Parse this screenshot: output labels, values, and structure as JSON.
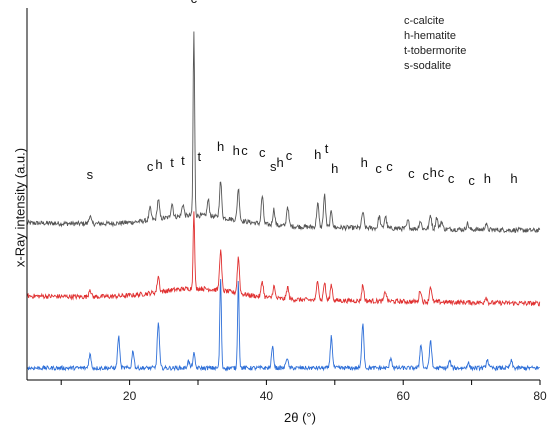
{
  "chart_data": {
    "type": "line",
    "xlabel": "2θ (°)",
    "ylabel": "x-Ray intensity (a.u.)",
    "xlim": [
      5,
      80
    ],
    "x_ticks": [
      "20",
      "40",
      "60",
      "80"
    ],
    "grid": false,
    "legend": {
      "placement": "top-right",
      "entries": [
        "c-calcite",
        "h-hematite",
        "t-tobermorite",
        "s-sodalite"
      ]
    },
    "colors": {
      "top": "#555555",
      "middle": "#e03030",
      "bottom": "#2e6fd8",
      "axis": "#000000"
    },
    "series": [
      {
        "color_key": "top",
        "baseline": 0.8,
        "peaks": [
          [
            14.2,
            0.2
          ],
          [
            23.0,
            0.3
          ],
          [
            24.2,
            0.5
          ],
          [
            26.2,
            0.35
          ],
          [
            27.8,
            0.3
          ],
          [
            29.4,
            4.6
          ],
          [
            31.5,
            0.4
          ],
          [
            33.3,
            0.9
          ],
          [
            35.9,
            0.8
          ],
          [
            39.4,
            0.7
          ],
          [
            41.1,
            0.4
          ],
          [
            43.1,
            0.5
          ],
          [
            47.5,
            0.6
          ],
          [
            48.5,
            0.8
          ],
          [
            49.5,
            0.4
          ],
          [
            54.1,
            0.4
          ],
          [
            56.5,
            0.3
          ],
          [
            57.4,
            0.3
          ],
          [
            60.7,
            0.2
          ],
          [
            62.5,
            0.2
          ],
          [
            64.0,
            0.35
          ],
          [
            64.9,
            0.3
          ],
          [
            65.6,
            0.2
          ],
          [
            69.4,
            0.15
          ],
          [
            72.1,
            0.15
          ]
        ]
      },
      {
        "color_key": "middle",
        "baseline": 0.8,
        "peaks": [
          [
            14.2,
            0.2
          ],
          [
            24.2,
            0.4
          ],
          [
            29.4,
            1.9
          ],
          [
            33.3,
            1.0
          ],
          [
            35.9,
            0.9
          ],
          [
            39.4,
            0.4
          ],
          [
            41.1,
            0.3
          ],
          [
            43.1,
            0.3
          ],
          [
            47.5,
            0.5
          ],
          [
            48.5,
            0.45
          ],
          [
            49.5,
            0.4
          ],
          [
            54.1,
            0.4
          ],
          [
            57.4,
            0.25
          ],
          [
            62.5,
            0.3
          ],
          [
            64.0,
            0.4
          ],
          [
            72.1,
            0.15
          ]
        ]
      },
      {
        "color_key": "bottom",
        "baseline": 0.0,
        "peaks": [
          [
            14.2,
            0.4
          ],
          [
            18.4,
            0.9
          ],
          [
            20.5,
            0.5
          ],
          [
            24.2,
            1.3
          ],
          [
            28.6,
            0.2
          ],
          [
            29.4,
            0.4
          ],
          [
            33.3,
            2.6
          ],
          [
            35.9,
            2.5
          ],
          [
            40.9,
            0.6
          ],
          [
            43.0,
            0.3
          ],
          [
            49.5,
            0.9
          ],
          [
            54.1,
            1.3
          ],
          [
            58.2,
            0.3
          ],
          [
            62.6,
            0.7
          ],
          [
            64.0,
            0.8
          ],
          [
            66.8,
            0.2
          ],
          [
            69.5,
            0.15
          ],
          [
            72.3,
            0.25
          ],
          [
            75.8,
            0.2
          ]
        ]
      }
    ],
    "annotations": [
      {
        "text": "c",
        "x": 29.4,
        "y": 5.5
      },
      {
        "text": "s",
        "x": 14.2,
        "y": 1.1
      },
      {
        "text": "c",
        "x": 23.0,
        "y": 1.3
      },
      {
        "text": "h",
        "x": 24.3,
        "y": 1.35
      },
      {
        "text": "t",
        "x": 26.2,
        "y": 1.4
      },
      {
        "text": "t",
        "x": 27.8,
        "y": 1.45
      },
      {
        "text": "t",
        "x": 30.2,
        "y": 1.55
      },
      {
        "text": "h",
        "x": 33.3,
        "y": 1.8
      },
      {
        "text": "h",
        "x": 35.6,
        "y": 1.7
      },
      {
        "text": "c",
        "x": 36.8,
        "y": 1.7
      },
      {
        "text": "c",
        "x": 39.4,
        "y": 1.65
      },
      {
        "text": "s",
        "x": 41.0,
        "y": 1.3
      },
      {
        "text": "h",
        "x": 42.0,
        "y": 1.4
      },
      {
        "text": "c",
        "x": 43.3,
        "y": 1.58
      },
      {
        "text": "h",
        "x": 47.5,
        "y": 1.6
      },
      {
        "text": "t",
        "x": 48.8,
        "y": 1.75
      },
      {
        "text": "h",
        "x": 50.0,
        "y": 1.25
      },
      {
        "text": "h",
        "x": 54.3,
        "y": 1.4
      },
      {
        "text": "c",
        "x": 56.4,
        "y": 1.25
      },
      {
        "text": "c",
        "x": 58.0,
        "y": 1.3
      },
      {
        "text": "c",
        "x": 61.2,
        "y": 1.12
      },
      {
        "text": "c",
        "x": 63.3,
        "y": 1.08
      },
      {
        "text": "h",
        "x": 64.4,
        "y": 1.15
      },
      {
        "text": "c",
        "x": 65.5,
        "y": 1.15
      },
      {
        "text": "c",
        "x": 67.0,
        "y": 1.0
      },
      {
        "text": "c",
        "x": 70.0,
        "y": 0.95
      },
      {
        "text": "h",
        "x": 72.3,
        "y": 1.0
      },
      {
        "text": "h",
        "x": 76.2,
        "y": 1.0
      }
    ]
  }
}
